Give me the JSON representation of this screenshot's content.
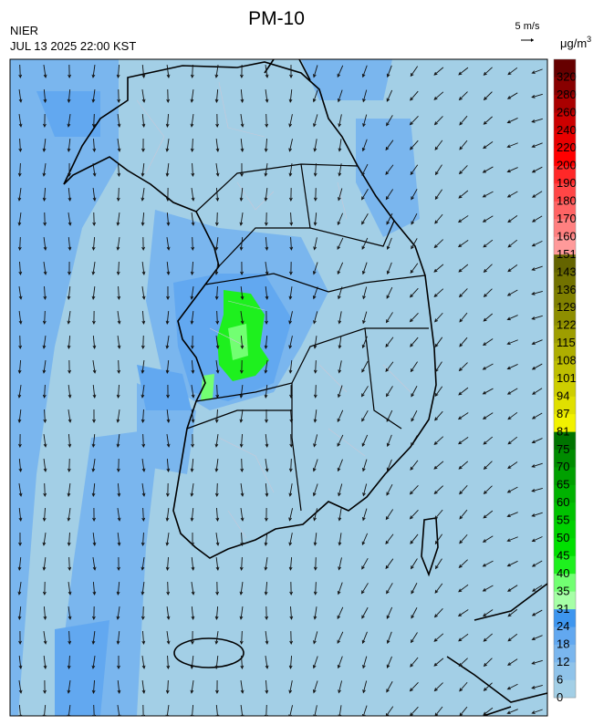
{
  "header": {
    "title": "PM-10",
    "agency": "NIER",
    "timestamp": "JUL 13 2025 22:00 KST",
    "wind_scale": "5 m/s",
    "unit": "μg/m",
    "unit_sup": "3"
  },
  "colorbar": {
    "levels": [
      {
        "label": "0",
        "color": "#a3cfe6"
      },
      {
        "label": "6",
        "color": "#8fc3ea"
      },
      {
        "label": "12",
        "color": "#7ab6ee"
      },
      {
        "label": "18",
        "color": "#62a8f0"
      },
      {
        "label": "24",
        "color": "#3e96ef"
      },
      {
        "label": "31",
        "color": "#a6ffa6"
      },
      {
        "label": "35",
        "color": "#72ff72"
      },
      {
        "label": "40",
        "color": "#1ef01e"
      },
      {
        "label": "45",
        "color": "#00e000"
      },
      {
        "label": "50",
        "color": "#00d200"
      },
      {
        "label": "55",
        "color": "#00c200"
      },
      {
        "label": "60",
        "color": "#00b200"
      },
      {
        "label": "65",
        "color": "#00a000"
      },
      {
        "label": "70",
        "color": "#008c00"
      },
      {
        "label": "75",
        "color": "#007400"
      },
      {
        "label": "81",
        "color": "#f2f200"
      },
      {
        "label": "87",
        "color": "#e0e000"
      },
      {
        "label": "94",
        "color": "#cece00"
      },
      {
        "label": "101",
        "color": "#bebe00"
      },
      {
        "label": "108",
        "color": "#aeae00"
      },
      {
        "label": "115",
        "color": "#9e9e00"
      },
      {
        "label": "122",
        "color": "#8e8e00"
      },
      {
        "label": "129",
        "color": "#808000"
      },
      {
        "label": "136",
        "color": "#727200"
      },
      {
        "label": "143",
        "color": "#646400"
      },
      {
        "label": "151",
        "color": "#ff9a9a"
      },
      {
        "label": "160",
        "color": "#ff8080"
      },
      {
        "label": "170",
        "color": "#ff6464"
      },
      {
        "label": "180",
        "color": "#ff4646"
      },
      {
        "label": "190",
        "color": "#ff2828"
      },
      {
        "label": "200",
        "color": "#ff0000"
      },
      {
        "label": "220",
        "color": "#e80000"
      },
      {
        "label": "240",
        "color": "#cc0000"
      },
      {
        "label": "260",
        "color": "#aa0000"
      },
      {
        "label": "280",
        "color": "#880000"
      },
      {
        "label": "320",
        "color": "#660000"
      }
    ]
  }
}
